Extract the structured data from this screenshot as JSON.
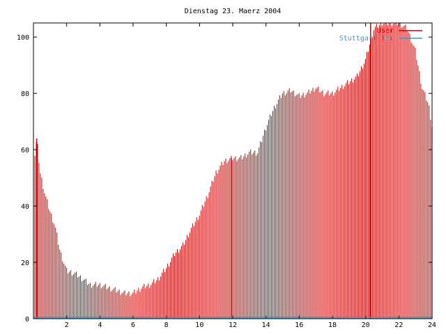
{
  "chart_data": {
    "type": "bar",
    "title": "Dienstag 23. Maerz 2004",
    "xlabel": "",
    "ylabel": "",
    "xlim": [
      0,
      24
    ],
    "ylim": [
      0,
      105
    ],
    "x_ticks": [
      2,
      4,
      6,
      8,
      10,
      12,
      14,
      16,
      18,
      20,
      22,
      24
    ],
    "y_ticks": [
      0,
      20,
      40,
      60,
      80,
      100
    ],
    "grid": false,
    "legend_position": "top-right",
    "series": [
      {
        "name": "User",
        "color": "#cc0000",
        "bar_step_hours": 0.0833,
        "x_start": 0,
        "anchors": [
          [
            0.0,
            54
          ],
          [
            0.2,
            64
          ],
          [
            0.4,
            52
          ],
          [
            0.7,
            44
          ],
          [
            1.0,
            38
          ],
          [
            1.3,
            33
          ],
          [
            1.6,
            24
          ],
          [
            2.0,
            17
          ],
          [
            2.5,
            16
          ],
          [
            3.0,
            14
          ],
          [
            3.4,
            12
          ],
          [
            4.0,
            12
          ],
          [
            4.5,
            11
          ],
          [
            5.0,
            10
          ],
          [
            5.5,
            9
          ],
          [
            6.0,
            9
          ],
          [
            6.5,
            11
          ],
          [
            7.0,
            12
          ],
          [
            7.5,
            14
          ],
          [
            8.0,
            18
          ],
          [
            8.5,
            23
          ],
          [
            9.0,
            26
          ],
          [
            9.5,
            32
          ],
          [
            10.0,
            37
          ],
          [
            10.5,
            44
          ],
          [
            11.0,
            52
          ],
          [
            11.5,
            56
          ],
          [
            12.0,
            57
          ],
          [
            12.5,
            57
          ],
          [
            13.0,
            59
          ],
          [
            13.5,
            59
          ],
          [
            14.0,
            68
          ],
          [
            14.5,
            75
          ],
          [
            15.0,
            80
          ],
          [
            15.5,
            81
          ],
          [
            16.0,
            79
          ],
          [
            16.5,
            80
          ],
          [
            17.0,
            82
          ],
          [
            17.5,
            80
          ],
          [
            18.0,
            80
          ],
          [
            18.5,
            82
          ],
          [
            19.0,
            84
          ],
          [
            19.5,
            86
          ],
          [
            20.0,
            92
          ],
          [
            20.5,
            103
          ],
          [
            21.0,
            105
          ],
          [
            21.5,
            105
          ],
          [
            22.0,
            105
          ],
          [
            22.5,
            103
          ],
          [
            23.0,
            95
          ],
          [
            23.4,
            82
          ],
          [
            23.8,
            76
          ],
          [
            24.0,
            68
          ]
        ],
        "spikes": [
          [
            0.2,
            64
          ],
          [
            11.92,
            57
          ],
          [
            20.3,
            105
          ]
        ]
      },
      {
        "name": "Stuttgart-ler",
        "color": "#3399cc",
        "baseline_value": 0.5
      }
    ]
  }
}
